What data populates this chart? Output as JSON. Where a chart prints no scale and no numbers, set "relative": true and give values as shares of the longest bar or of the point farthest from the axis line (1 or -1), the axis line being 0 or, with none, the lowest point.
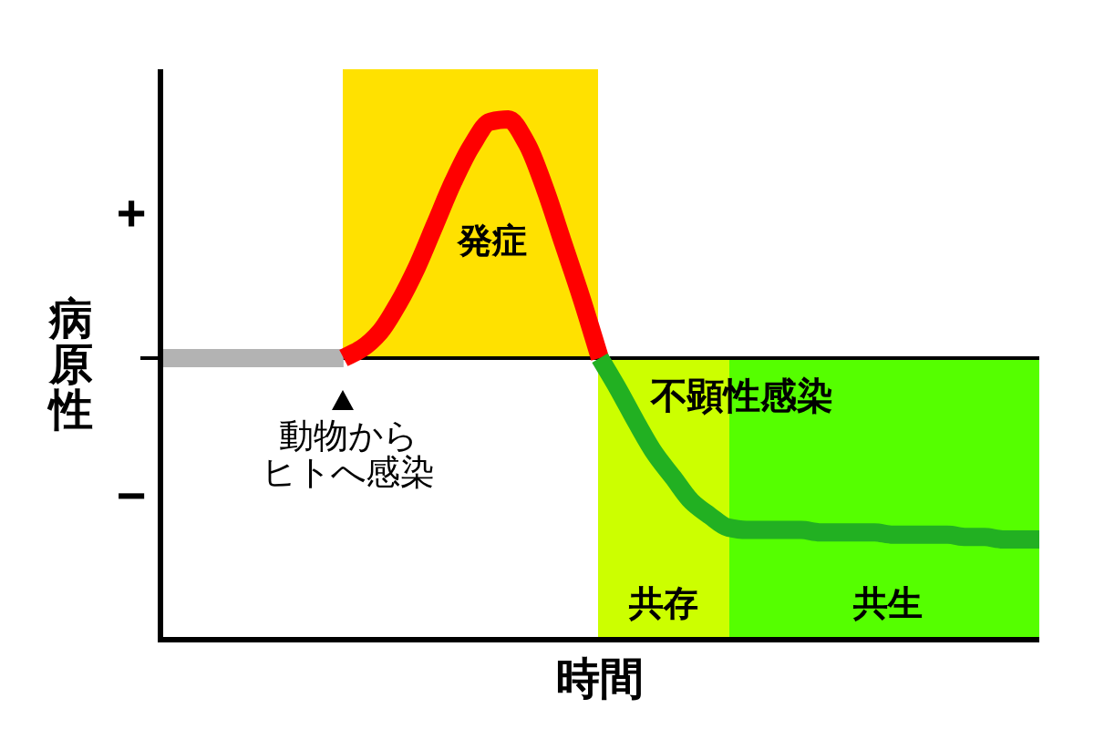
{
  "chart_data": {
    "type": "line",
    "relative": true,
    "xlabel": "時間",
    "ylabel": "病原性",
    "categories": [
      null,
      null,
      null,
      null,
      null,
      null,
      null,
      null,
      null,
      null,
      null,
      null,
      null,
      null,
      null,
      null,
      null,
      null,
      null,
      null,
      null,
      null,
      null,
      null,
      null,
      null,
      null,
      null,
      null,
      null,
      null,
      null,
      null,
      null,
      null,
      null,
      null,
      null,
      null,
      null,
      null,
      null,
      null,
      null,
      null,
      null,
      null,
      null,
      null
    ],
    "series": [
      {
        "color": "#b3b3b3",
        "values": [
          0,
          0,
          0,
          0,
          0,
          0,
          0,
          0,
          0,
          0,
          0,
          null,
          null,
          null,
          null,
          null,
          null,
          null,
          null,
          null,
          null,
          null,
          null,
          null,
          null,
          null,
          null,
          null,
          null,
          null,
          null,
          null,
          null,
          null,
          null,
          null,
          null,
          null,
          null,
          null,
          null,
          null,
          null,
          null,
          null,
          null,
          null,
          null,
          null
        ]
      },
      {
        "color": "#ff0000",
        "values": [
          null,
          null,
          null,
          null,
          null,
          null,
          null,
          null,
          null,
          null,
          0,
          0.04,
          0.11,
          0.23,
          0.38,
          0.56,
          0.74,
          0.89,
          0.99,
          1,
          0.9,
          0.71,
          0.48,
          0.25,
          0,
          null,
          null,
          null,
          null,
          null,
          null,
          null,
          null,
          null,
          null,
          null,
          null,
          null,
          null,
          null,
          null,
          null,
          null,
          null,
          null,
          null,
          null,
          null,
          null
        ]
      },
      {
        "color": "#22b022",
        "values": [
          null,
          null,
          null,
          null,
          null,
          null,
          null,
          null,
          null,
          null,
          null,
          null,
          null,
          null,
          null,
          null,
          null,
          null,
          null,
          null,
          null,
          null,
          null,
          null,
          0,
          -0.13,
          -0.27,
          -0.4,
          -0.5,
          -0.6,
          -0.66,
          -0.71,
          -0.72,
          -0.72,
          -0.72,
          -0.72,
          -0.73,
          -0.73,
          -0.73,
          -0.73,
          -0.74,
          -0.74,
          -0.74,
          -0.74,
          -0.75,
          -0.75,
          -0.76,
          -0.76,
          -0.76
        ]
      }
    ],
    "annotations": [
      "+",
      "−",
      "発症",
      "動物から",
      "ヒトへ感染",
      "不顕性感染",
      "共存",
      "共生"
    ]
  }
}
